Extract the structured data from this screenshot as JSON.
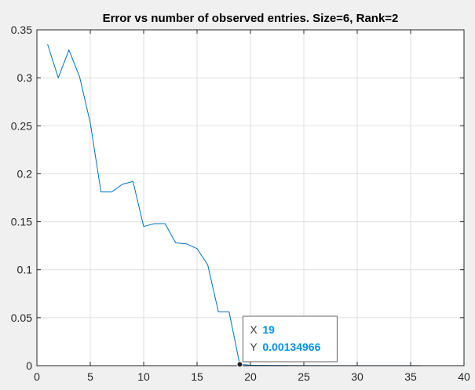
{
  "window": {
    "background": "#f0f0f0"
  },
  "chart_data": {
    "type": "line",
    "title": "Error vs number of observed entries. Size=6,  Rank=2",
    "xlabel": "",
    "ylabel": "",
    "xlim": [
      0,
      40
    ],
    "ylim": [
      0,
      0.35
    ],
    "xticks": [
      "0",
      "5",
      "10",
      "15",
      "20",
      "25",
      "30",
      "35",
      "40"
    ],
    "yticks": [
      "0",
      "0.05",
      "0.1",
      "0.15",
      "0.2",
      "0.25",
      "0.3",
      "0.35"
    ],
    "grid": true,
    "series": [
      {
        "color": "#0072bd",
        "x": [
          1,
          2,
          3,
          4,
          5,
          6,
          7,
          8,
          9,
          10,
          11,
          12,
          13,
          14,
          15,
          16,
          17,
          18,
          19,
          20,
          21,
          22,
          23,
          24,
          25,
          26,
          27,
          28,
          29,
          30,
          31,
          32,
          33,
          34,
          35,
          36
        ],
        "y": [
          0.335,
          0.3,
          0.329,
          0.301,
          0.253,
          0.181,
          0.181,
          0.189,
          0.192,
          0.145,
          0.148,
          0.148,
          0.128,
          0.127,
          0.122,
          0.105,
          0.056,
          0.056,
          0.00134966,
          0.0005,
          0.0004,
          0.0003,
          0.0003,
          0.0002,
          0.0002,
          0.0002,
          0.0001,
          0.0001,
          0.0001,
          0.0001,
          0.0001,
          0.0001,
          0.0001,
          0.0001,
          0.0001,
          0.0001
        ]
      }
    ],
    "datatip": {
      "x_key": "X",
      "x_value": "19",
      "y_key": "Y",
      "y_value": "0.00134966",
      "point": [
        19,
        0.00134966
      ],
      "value_color": "#0092e5"
    }
  }
}
